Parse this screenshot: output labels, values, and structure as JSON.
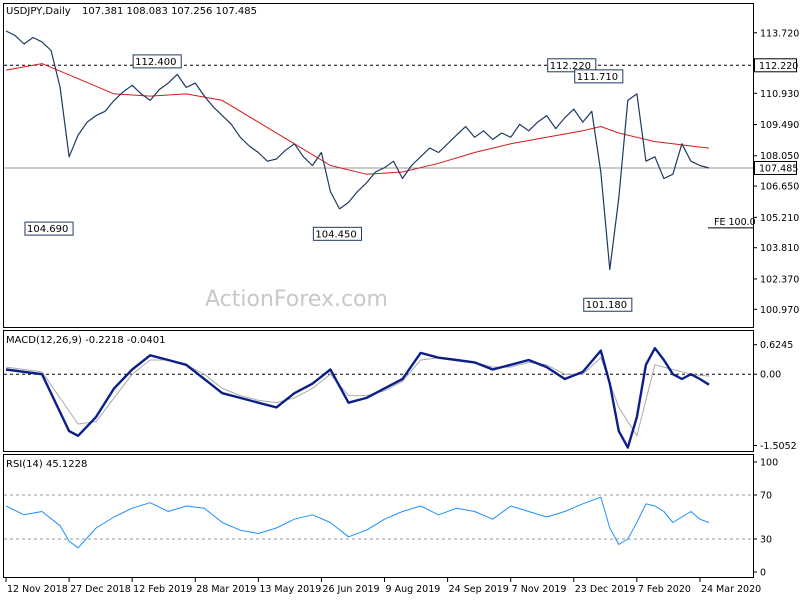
{
  "chart_data": {
    "type": "line",
    "symbol_header": "USDJPY,Daily",
    "ohlc_header": "107.381 108.083 107.256 107.485",
    "watermark": "ActionForex.com",
    "price_axis": {
      "range": [
        100.2,
        115.0
      ],
      "ticks": [
        "113.720",
        "112.220",
        "110.930",
        "109.490",
        "108.050",
        "107.485",
        "106.650",
        "105.210",
        "103.810",
        "102.370",
        "100.970"
      ],
      "current_price": 107.485,
      "current_label": "107.485",
      "resistance": 112.22,
      "resistance_label": "112.220"
    },
    "annotations": [
      {
        "text": "112.400",
        "x": 19,
        "y": 112.4
      },
      {
        "text": "104.690",
        "x": 7,
        "y": 104.69
      },
      {
        "text": "104.450",
        "x": 39,
        "y": 104.45
      },
      {
        "text": "112.220",
        "x": 65,
        "y": 112.22
      },
      {
        "text": "111.710",
        "x": 68,
        "y": 111.71
      },
      {
        "text": "101.180",
        "x": 69,
        "y": 101.18
      }
    ],
    "fe_label": {
      "text": "FE 100.0",
      "y": 105.0
    },
    "x_labels": [
      {
        "text": "12 Nov 2018",
        "x": 0
      },
      {
        "text": "27 Dec 2018",
        "x": 7
      },
      {
        "text": "12 Feb 2019",
        "x": 14
      },
      {
        "text": "28 Mar 2019",
        "x": 21
      },
      {
        "text": "13 May 2019",
        "x": 28
      },
      {
        "text": "26 Jun 2019",
        "x": 35
      },
      {
        "text": "9 Aug 2019",
        "x": 42
      },
      {
        "text": "24 Sep 2019",
        "x": 49
      },
      {
        "text": "7 Nov 2019",
        "x": 56
      },
      {
        "text": "23 Dec 2019",
        "x": 63
      },
      {
        "text": "7 Feb 2020",
        "x": 70
      },
      {
        "text": "24 Mar 2020",
        "x": 77
      }
    ],
    "x_range": [
      0,
      82
    ],
    "series": [
      {
        "name": "USDJPY close",
        "x": [
          0,
          1,
          2,
          3,
          4,
          5,
          6,
          7,
          8,
          9,
          10,
          11,
          12,
          13,
          14,
          15,
          16,
          17,
          18,
          19,
          20,
          21,
          22,
          23,
          24,
          25,
          26,
          27,
          28,
          29,
          30,
          31,
          32,
          33,
          34,
          35,
          36,
          37,
          38,
          39,
          40,
          41,
          42,
          43,
          44,
          45,
          46,
          47,
          48,
          49,
          50,
          51,
          52,
          53,
          54,
          55,
          56,
          57,
          58,
          59,
          60,
          61,
          62,
          63,
          64,
          65,
          66,
          67,
          68,
          69,
          70,
          71,
          72,
          73,
          74,
          75,
          76,
          77,
          78
        ],
        "values": [
          113.8,
          113.6,
          113.2,
          113.5,
          113.3,
          112.9,
          111.2,
          108.0,
          109.0,
          109.6,
          109.9,
          110.1,
          110.6,
          111.0,
          111.3,
          110.9,
          110.6,
          111.1,
          111.4,
          111.8,
          111.2,
          111.4,
          110.8,
          110.3,
          109.9,
          109.5,
          108.9,
          108.5,
          108.2,
          107.8,
          107.9,
          108.3,
          108.6,
          108.0,
          107.6,
          108.2,
          106.4,
          105.6,
          105.9,
          106.4,
          106.8,
          107.3,
          107.5,
          107.8,
          107.0,
          107.6,
          108.0,
          108.4,
          108.2,
          108.6,
          109.0,
          109.4,
          108.9,
          109.2,
          108.8,
          109.1,
          108.9,
          109.5,
          109.2,
          109.6,
          109.9,
          109.3,
          109.8,
          110.2,
          109.6,
          110.1,
          107.3,
          102.8,
          106.1,
          110.6,
          110.9,
          107.8,
          108.0,
          107.0,
          107.2,
          108.6,
          107.8,
          107.6,
          107.485
        ]
      },
      {
        "name": "MA",
        "x": [
          0,
          4,
          8,
          12,
          16,
          20,
          24,
          28,
          32,
          36,
          40,
          44,
          48,
          52,
          56,
          60,
          64,
          66,
          68,
          70,
          72,
          74,
          76,
          78
        ],
        "values": [
          112.0,
          112.3,
          111.6,
          110.9,
          110.8,
          110.9,
          110.6,
          109.6,
          108.6,
          107.6,
          107.2,
          107.3,
          107.7,
          108.2,
          108.6,
          108.9,
          109.2,
          109.4,
          109.1,
          108.9,
          108.7,
          108.6,
          108.5,
          108.4
        ]
      }
    ],
    "macd": {
      "header": "MACD(12,26,9) -0.2218 -0.0401",
      "range": [
        -1.6,
        0.85
      ],
      "ticks": [
        "0.6245",
        "0.00",
        "-1.5052"
      ],
      "series": [
        {
          "name": "MACD",
          "x": [
            0,
            4,
            7,
            8,
            10,
            12,
            14,
            16,
            18,
            20,
            22,
            24,
            26,
            28,
            30,
            32,
            34,
            36,
            38,
            40,
            42,
            44,
            46,
            48,
            50,
            52,
            54,
            56,
            58,
            60,
            62,
            64,
            66,
            67,
            68,
            69,
            70,
            71,
            72,
            73,
            74,
            75,
            76,
            77,
            78
          ],
          "values": [
            0.1,
            0.0,
            -1.2,
            -1.3,
            -0.9,
            -0.3,
            0.1,
            0.4,
            0.3,
            0.2,
            -0.1,
            -0.4,
            -0.5,
            -0.6,
            -0.7,
            -0.4,
            -0.2,
            0.1,
            -0.6,
            -0.5,
            -0.3,
            -0.1,
            0.45,
            0.35,
            0.3,
            0.25,
            0.1,
            0.2,
            0.3,
            0.15,
            -0.1,
            0.05,
            0.5,
            -0.2,
            -1.2,
            -1.55,
            -0.9,
            0.2,
            0.55,
            0.3,
            0.0,
            -0.1,
            0.0,
            -0.1,
            -0.22
          ]
        },
        {
          "name": "Signal",
          "x": [
            0,
            4,
            8,
            10,
            12,
            14,
            16,
            18,
            20,
            22,
            24,
            26,
            28,
            30,
            32,
            34,
            36,
            38,
            40,
            42,
            44,
            46,
            48,
            50,
            52,
            54,
            56,
            58,
            60,
            62,
            64,
            66,
            68,
            70,
            72,
            74,
            76,
            78
          ],
          "values": [
            0.15,
            0.05,
            -1.05,
            -1.0,
            -0.5,
            0.0,
            0.3,
            0.3,
            0.2,
            0.0,
            -0.3,
            -0.45,
            -0.55,
            -0.6,
            -0.5,
            -0.3,
            0.0,
            -0.45,
            -0.45,
            -0.35,
            -0.15,
            0.3,
            0.35,
            0.3,
            0.25,
            0.15,
            0.15,
            0.25,
            0.2,
            0.0,
            0.0,
            0.35,
            -0.7,
            -1.3,
            0.2,
            0.1,
            0.0,
            -0.04
          ]
        }
      ]
    },
    "rsi": {
      "header": "RSI(14) 45.1228",
      "range": [
        0,
        100
      ],
      "ticks": [
        "100",
        "70",
        "30",
        "0"
      ],
      "levels": [
        70,
        30
      ],
      "series": [
        {
          "name": "RSI",
          "x": [
            0,
            2,
            4,
            6,
            7,
            8,
            10,
            12,
            14,
            16,
            18,
            20,
            22,
            24,
            26,
            28,
            30,
            32,
            34,
            36,
            38,
            40,
            42,
            44,
            46,
            48,
            50,
            52,
            54,
            56,
            58,
            60,
            62,
            64,
            66,
            67,
            68,
            69,
            70,
            71,
            72,
            73,
            74,
            75,
            76,
            77,
            78
          ],
          "values": [
            60,
            52,
            55,
            42,
            28,
            22,
            40,
            50,
            58,
            63,
            55,
            60,
            58,
            45,
            38,
            35,
            40,
            48,
            52,
            45,
            32,
            38,
            48,
            55,
            60,
            52,
            58,
            55,
            48,
            60,
            55,
            50,
            55,
            62,
            68,
            40,
            25,
            30,
            45,
            62,
            60,
            55,
            45,
            50,
            55,
            48,
            45
          ]
        }
      ]
    }
  }
}
